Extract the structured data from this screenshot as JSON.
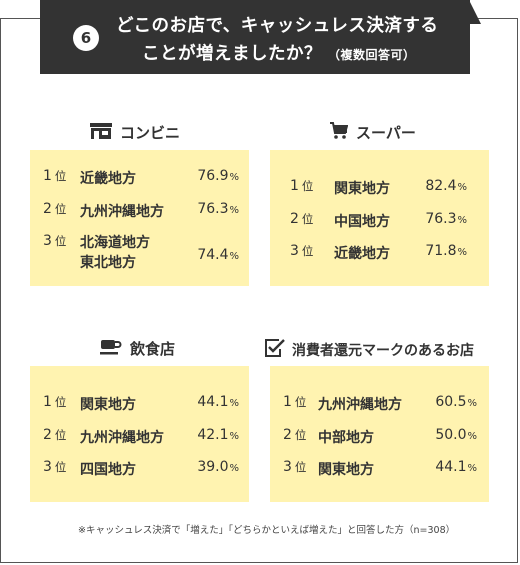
{
  "question": {
    "number": "6",
    "line1": "どこのお店で、キャッシュレス決済する",
    "line2": "ことが増えましたか？",
    "note": "（複数回答可）"
  },
  "categories": [
    {
      "title": "コンビニ",
      "icon": "store-icon",
      "rows": [
        {
          "rank": "1",
          "suffix": "位",
          "region": "近畿地方",
          "value": "76.9",
          "unit": "%"
        },
        {
          "rank": "2",
          "suffix": "位",
          "region": "九州沖縄地方",
          "value": "76.3",
          "unit": "%"
        },
        {
          "rank": "3",
          "suffix": "位",
          "region_line1": "北海道地方",
          "region_line2": "東北地方",
          "value": "74.4",
          "unit": "%"
        }
      ]
    },
    {
      "title": "スーパー",
      "icon": "shopping-cart-icon",
      "rows": [
        {
          "rank": "1",
          "suffix": "位",
          "region": "関東地方",
          "value": "82.4",
          "unit": "%"
        },
        {
          "rank": "2",
          "suffix": "位",
          "region": "中国地方",
          "value": "76.3",
          "unit": "%"
        },
        {
          "rank": "3",
          "suffix": "位",
          "region": "近畿地方",
          "value": "71.8",
          "unit": "%"
        }
      ]
    },
    {
      "title": "飲食店",
      "icon": "coffee-cup-icon",
      "rows": [
        {
          "rank": "1",
          "suffix": "位",
          "region": "関東地方",
          "value": "44.1",
          "unit": "%"
        },
        {
          "rank": "2",
          "suffix": "位",
          "region": "九州沖縄地方",
          "value": "42.1",
          "unit": "%"
        },
        {
          "rank": "3",
          "suffix": "位",
          "region": "四国地方",
          "value": "39.0",
          "unit": "%"
        }
      ]
    },
    {
      "title": "消費者還元マークのあるお店",
      "icon": "checkmark-box-icon",
      "rows": [
        {
          "rank": "1",
          "suffix": "位",
          "region": "九州沖縄地方",
          "value": "60.5",
          "unit": "%"
        },
        {
          "rank": "2",
          "suffix": "位",
          "region": "中部地方",
          "value": "50.0",
          "unit": "%"
        },
        {
          "rank": "3",
          "suffix": "位",
          "region": "関東地方",
          "value": "44.1",
          "unit": "%"
        }
      ]
    }
  ],
  "footnote": "※キャッシュレス決済で「増えた」「どちらかといえば増えた」と回答した方（n=308）",
  "colors": {
    "header_bg": "#333333",
    "panel_bg": "#fff3b0",
    "text": "#333333"
  }
}
